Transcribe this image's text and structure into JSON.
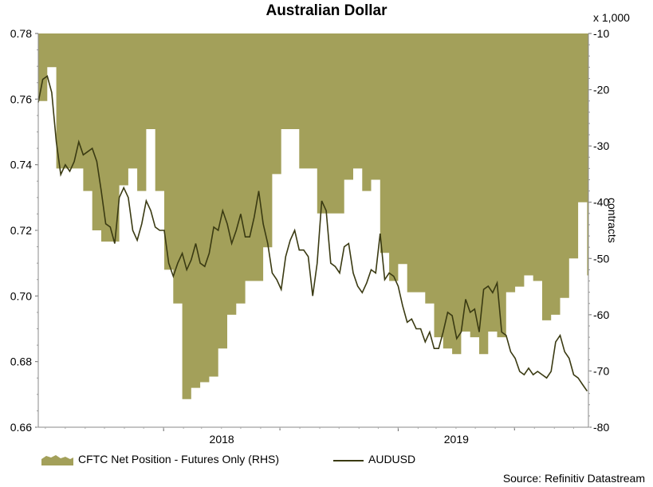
{
  "chart_data": {
    "type": "line",
    "title": "Australian Dollar",
    "x_ticks": [
      "2018",
      "2019"
    ],
    "left_axis": {
      "min": 0.66,
      "max": 0.78,
      "ticks": [
        "0.66",
        "0.68",
        "0.70",
        "0.72",
        "0.74",
        "0.76",
        "0.78"
      ]
    },
    "right_axis": {
      "min": -80,
      "max": -10,
      "unit_label": "x 1,000",
      "title": "contracts",
      "ticks": [
        "-80",
        "-70",
        "-60",
        "-50",
        "-40",
        "-30",
        "-20",
        "-10"
      ]
    },
    "grid": false,
    "legend_placement": "bottom",
    "series": [
      {
        "name": "CFTC Net Position - Futures Only (RHS)",
        "kind": "area",
        "axis": "right",
        "color": "#a3a05a",
        "x": [
          "2017-06-20",
          "2017-07-04",
          "2017-07-18",
          "2017-08-01",
          "2017-08-15",
          "2017-08-29",
          "2017-09-12",
          "2017-09-26",
          "2017-10-10",
          "2017-10-24",
          "2017-11-07",
          "2017-11-21",
          "2017-12-05",
          "2017-12-19",
          "2018-01-02",
          "2018-01-16",
          "2018-01-30",
          "2018-02-13",
          "2018-02-27",
          "2018-03-13",
          "2018-03-27",
          "2018-04-10",
          "2018-04-24",
          "2018-05-08",
          "2018-05-22",
          "2018-06-05",
          "2018-06-19",
          "2018-07-03",
          "2018-07-17",
          "2018-07-31",
          "2018-08-14",
          "2018-08-28",
          "2018-09-11",
          "2018-09-25",
          "2018-10-09",
          "2018-10-23",
          "2018-11-06",
          "2018-11-20",
          "2018-12-04",
          "2018-12-18",
          "2019-01-01",
          "2019-01-15",
          "2019-01-29",
          "2019-02-12",
          "2019-02-26",
          "2019-03-12",
          "2019-03-26",
          "2019-04-09",
          "2019-04-23",
          "2019-05-07",
          "2019-05-21",
          "2019-06-04",
          "2019-06-18",
          "2019-07-02",
          "2019-07-16",
          "2019-07-30",
          "2019-08-13",
          "2019-08-27",
          "2019-09-10",
          "2019-09-24",
          "2019-10-08",
          "2019-10-22"
        ],
        "values": [
          -22,
          -16,
          -34,
          -34,
          -34,
          -38,
          -45,
          -47,
          -47,
          -37,
          -34,
          -38,
          -27,
          -38,
          -52,
          -58,
          -75,
          -73,
          -72,
          -71,
          -66,
          -60,
          -58,
          -54,
          -54,
          -48,
          -35,
          -27,
          -27,
          -34,
          -34,
          -42,
          -42,
          -42,
          -36,
          -34,
          -38,
          -36,
          -49,
          -54,
          -51,
          -56,
          -56,
          -58,
          -64,
          -66,
          -67,
          -63,
          -64,
          -67,
          -63,
          -64,
          -56,
          -55,
          -53,
          -54,
          -61,
          -60,
          -57,
          -50,
          -40,
          -53
        ],
        "values_note": "net position in thousands of contracts"
      },
      {
        "name": "AUDUSD",
        "kind": "line",
        "axis": "left",
        "color": "#3a3a12",
        "x": [
          "2017-06-20",
          "2017-06-27",
          "2017-07-04",
          "2017-07-11",
          "2017-07-18",
          "2017-07-25",
          "2017-08-01",
          "2017-08-08",
          "2017-08-15",
          "2017-08-22",
          "2017-08-29",
          "2017-09-05",
          "2017-09-12",
          "2017-09-19",
          "2017-09-26",
          "2017-10-03",
          "2017-10-10",
          "2017-10-17",
          "2017-10-24",
          "2017-10-31",
          "2017-11-07",
          "2017-11-14",
          "2017-11-21",
          "2017-11-28",
          "2017-12-05",
          "2017-12-12",
          "2017-12-19",
          "2017-12-26",
          "2018-01-02",
          "2018-01-09",
          "2018-01-16",
          "2018-01-23",
          "2018-01-30",
          "2018-02-06",
          "2018-02-13",
          "2018-02-20",
          "2018-02-27",
          "2018-03-06",
          "2018-03-13",
          "2018-03-20",
          "2018-03-27",
          "2018-04-03",
          "2018-04-10",
          "2018-04-17",
          "2018-04-24",
          "2018-05-01",
          "2018-05-08",
          "2018-05-15",
          "2018-05-22",
          "2018-05-29",
          "2018-06-05",
          "2018-06-12",
          "2018-06-19",
          "2018-06-26",
          "2018-07-03",
          "2018-07-10",
          "2018-07-17",
          "2018-07-24",
          "2018-07-31",
          "2018-08-07",
          "2018-08-14",
          "2018-08-21",
          "2018-08-28",
          "2018-09-04",
          "2018-09-11",
          "2018-09-18",
          "2018-09-25",
          "2018-10-02",
          "2018-10-09",
          "2018-10-16",
          "2018-10-23",
          "2018-10-30",
          "2018-11-06",
          "2018-11-13",
          "2018-11-20",
          "2018-11-27",
          "2018-12-04",
          "2018-12-11",
          "2018-12-18",
          "2018-12-25",
          "2019-01-01",
          "2019-01-08",
          "2019-01-15",
          "2019-01-22",
          "2019-01-29",
          "2019-02-05",
          "2019-02-12",
          "2019-02-19",
          "2019-02-26",
          "2019-03-05",
          "2019-03-12",
          "2019-03-19",
          "2019-03-26",
          "2019-04-02",
          "2019-04-09",
          "2019-04-16",
          "2019-04-23",
          "2019-04-30",
          "2019-05-07",
          "2019-05-14",
          "2019-05-21",
          "2019-05-28",
          "2019-06-04",
          "2019-06-11",
          "2019-06-18",
          "2019-06-25",
          "2019-07-02",
          "2019-07-09",
          "2019-07-16",
          "2019-07-23",
          "2019-07-30",
          "2019-08-06",
          "2019-08-13",
          "2019-08-20",
          "2019-08-27",
          "2019-09-03",
          "2019-09-10",
          "2019-09-17",
          "2019-09-24",
          "2019-10-01",
          "2019-10-08",
          "2019-10-15",
          "2019-10-22"
        ],
        "values": [
          0.759,
          0.766,
          0.767,
          0.762,
          0.747,
          0.737,
          0.74,
          0.738,
          0.741,
          0.747,
          0.743,
          0.744,
          0.745,
          0.741,
          0.732,
          0.722,
          0.721,
          0.716,
          0.73,
          0.733,
          0.73,
          0.72,
          0.717,
          0.722,
          0.729,
          0.726,
          0.721,
          0.72,
          0.72,
          0.71,
          0.706,
          0.71,
          0.713,
          0.708,
          0.711,
          0.716,
          0.71,
          0.709,
          0.713,
          0.721,
          0.72,
          0.726,
          0.722,
          0.716,
          0.72,
          0.725,
          0.718,
          0.718,
          0.724,
          0.732,
          0.722,
          0.716,
          0.707,
          0.705,
          0.702,
          0.712,
          0.717,
          0.72,
          0.714,
          0.714,
          0.712,
          0.7,
          0.71,
          0.729,
          0.726,
          0.71,
          0.709,
          0.707,
          0.715,
          0.716,
          0.707,
          0.703,
          0.701,
          0.704,
          0.708,
          0.707,
          0.719,
          0.705,
          0.707,
          0.706,
          0.703,
          0.697,
          0.692,
          0.693,
          0.69,
          0.69,
          0.686,
          0.689,
          0.684,
          0.684,
          0.689,
          0.695,
          0.694,
          0.687,
          0.689,
          0.699,
          0.695,
          0.696,
          0.689,
          0.702,
          0.703,
          0.701,
          0.704,
          0.689,
          0.688,
          0.683,
          0.681,
          0.677,
          0.676,
          0.678,
          0.676,
          0.677,
          0.676,
          0.675,
          0.677,
          0.686,
          0.688,
          0.683,
          0.681,
          0.676,
          0.675,
          0.673,
          0.671
        ]
      }
    ]
  },
  "source": "Source: Refinitiv Datastream"
}
